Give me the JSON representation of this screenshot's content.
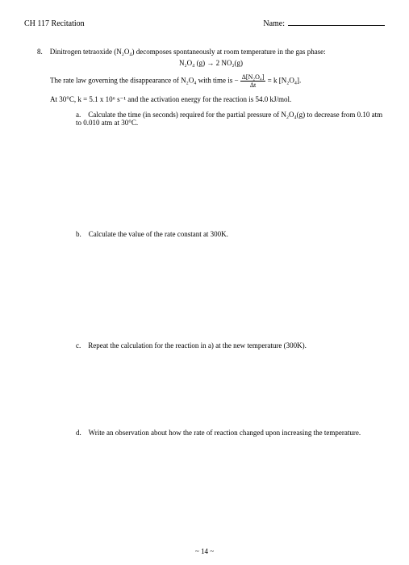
{
  "header": {
    "course": "CH 117 Recitation",
    "name_label": "Name:"
  },
  "question": {
    "number": "8.",
    "intro": "Dinitrogen tetraoxide (N₂O₄) decomposes spontaneously at room temperature in the gas phase:",
    "equation": "N₂O₄ (g)  →  2 NO₂(g)",
    "rate_law_prefix": "The rate law governing the disappearance of N₂O₄ with time is   −",
    "rate_law_frac_top": "Δ[N₂O₄]",
    "rate_law_frac_bot": "Δt",
    "rate_law_suffix": " = k [N₂O₄].",
    "conditions": "At 30°C, k = 5.1 x 10⁶ s⁻¹ and the activation energy for the reaction is 54.0 kJ/mol.",
    "parts": {
      "a": {
        "letter": "a.",
        "text": "Calculate the time (in seconds) required for the partial pressure of N₂O₄(g) to decrease from 0.10 atm to 0.010 atm at 30°C."
      },
      "b": {
        "letter": "b.",
        "text": "Calculate the value of the rate constant at 300K."
      },
      "c": {
        "letter": "c.",
        "text": "Repeat the calculation for the reaction in a) at the new temperature (300K)."
      },
      "d": {
        "letter": "d.",
        "text": "Write an observation about how the rate of reaction changed upon increasing the temperature."
      }
    }
  },
  "page_number": "~ 14 ~"
}
